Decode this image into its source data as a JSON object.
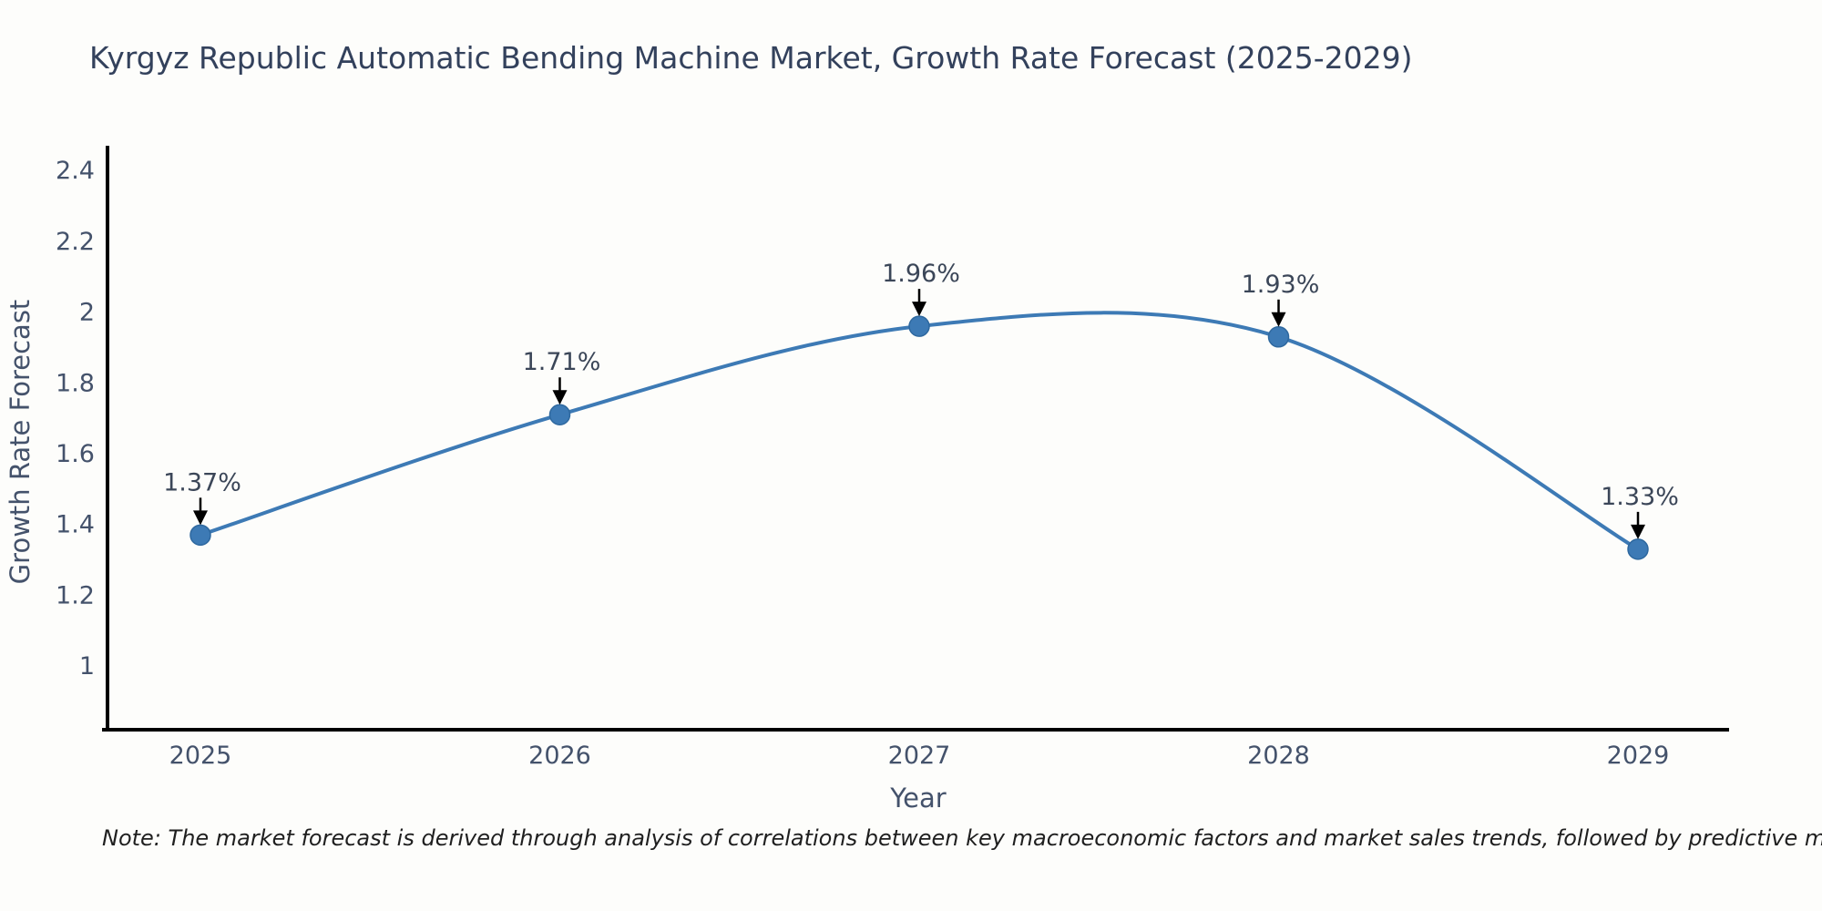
{
  "title": "Kyrgyz Republic Automatic Bending Machine Market, Growth Rate Forecast (2025-2029)",
  "note": "Note: The market forecast is derived through analysis of correlations between key macroeconomic factors and market sales trends, followed by predictive modeling to project future sales",
  "chart_data": {
    "type": "line",
    "x": [
      2025,
      2026,
      2027,
      2028,
      2029
    ],
    "x_tick_labels": [
      "2025",
      "2026",
      "2027",
      "2028",
      "2029"
    ],
    "values": [
      1.37,
      1.71,
      1.96,
      1.93,
      1.33
    ],
    "point_labels": [
      "1.37%",
      "1.71%",
      "1.96%",
      "1.93%",
      "1.33%"
    ],
    "xlabel": "Year",
    "ylabel": "Growth Rate Forecast",
    "y_ticks": [
      1,
      1.2,
      1.4,
      1.6,
      1.8,
      2,
      2.2,
      2.4
    ],
    "y_tick_labels": [
      "1",
      "1.2",
      "1.4",
      "1.6",
      "1.8",
      "2",
      "2.2",
      "2.4"
    ],
    "ylim": [
      0.82,
      2.47
    ],
    "grid": false,
    "legend": "none",
    "smoothing": "spline",
    "line_color": "#3d7ab5",
    "marker_color": "#3d7ab5",
    "marker_edge_color": "#2e689f",
    "arrow_color": "#000000",
    "spine_color": "#000000"
  },
  "colors": {
    "title": "#33415c",
    "axis_text": "#44526b",
    "note_text": "#1f1f1f",
    "background": "#fdfdfb"
  }
}
